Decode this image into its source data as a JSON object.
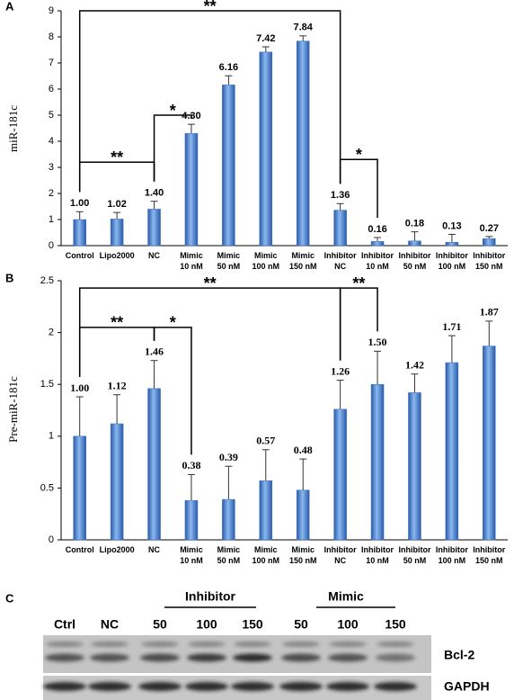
{
  "chart_data": [
    {
      "type": "bar",
      "panel_label": "A",
      "ylabel": "miR-181c",
      "categories": [
        [
          "Control"
        ],
        [
          "Lipo2000"
        ],
        [
          "NC"
        ],
        [
          "Mimic",
          "10 nM"
        ],
        [
          "Mimic",
          "50 nM"
        ],
        [
          "Mimic",
          "100 nM"
        ],
        [
          "Mimic",
          "150 nM"
        ],
        [
          "Inhibitor",
          "NC"
        ],
        [
          "Inhibitor",
          "10 nM"
        ],
        [
          "Inhibitor",
          "50 nM"
        ],
        [
          "Inhibitor",
          "100 nM"
        ],
        [
          "Inhibitor",
          "150 nM"
        ]
      ],
      "values": [
        1.0,
        1.02,
        1.4,
        4.3,
        6.16,
        7.42,
        7.84,
        1.36,
        0.16,
        0.18,
        0.13,
        0.27
      ],
      "value_labels": [
        "1.00",
        "1.02",
        "1.40",
        "4.30",
        "6.16",
        "7.42",
        "7.84",
        "1.36",
        "0.16",
        "0.18",
        "0.13",
        "0.27"
      ],
      "errors": [
        0.3,
        0.25,
        0.3,
        0.35,
        0.35,
        0.2,
        0.2,
        0.25,
        0.15,
        0.35,
        0.3,
        0.08
      ],
      "color": "#3b73c8",
      "ylim": [
        0,
        9
      ],
      "yticks": [
        0,
        1,
        2,
        3,
        4,
        5,
        6,
        7,
        8,
        9
      ],
      "annotations": [
        "**",
        "**",
        "*",
        "*"
      ]
    },
    {
      "type": "bar",
      "panel_label": "B",
      "ylabel": "Pre-miR-181c",
      "categories": [
        [
          "Control"
        ],
        [
          "Lipo2000"
        ],
        [
          "NC"
        ],
        [
          "Mimic",
          "10 nM"
        ],
        [
          "Mimic",
          "50 nM"
        ],
        [
          "Mimic",
          "100 nM"
        ],
        [
          "Mimic",
          "150 nM"
        ],
        [
          "Inhibitor",
          "NC"
        ],
        [
          "Inhibitor",
          "10 nM"
        ],
        [
          "Inhibitor",
          "50 nM"
        ],
        [
          "Inhibitor",
          "100 nM"
        ],
        [
          "Inhibitor",
          "150 nM"
        ]
      ],
      "values": [
        1.0,
        1.12,
        1.46,
        0.38,
        0.39,
        0.57,
        0.48,
        1.26,
        1.5,
        1.42,
        1.71,
        1.87
      ],
      "value_labels": [
        "1.00",
        "1.12",
        "1.46",
        "0.38",
        "0.39",
        "0.57",
        "0.48",
        "1.26",
        "1.50",
        "1.42",
        "1.71",
        "1.87"
      ],
      "errors": [
        0.38,
        0.28,
        0.27,
        0.25,
        0.32,
        0.3,
        0.3,
        0.28,
        0.32,
        0.18,
        0.26,
        0.24
      ],
      "color": "#3b73c8",
      "ylim": [
        0,
        2.5
      ],
      "yticks": [
        0,
        0.5,
        1,
        1.5,
        2,
        2.5
      ],
      "annotations": [
        "**",
        "**",
        "*",
        "**"
      ]
    }
  ],
  "blot": {
    "panel_label": "C",
    "lanes": [
      "Ctrl",
      "NC",
      "50",
      "100",
      "150",
      "50",
      "100",
      "150"
    ],
    "groups": [
      "Inhibitor",
      "Mimic"
    ],
    "rows": [
      "Bcl-2",
      "GAPDH"
    ]
  }
}
